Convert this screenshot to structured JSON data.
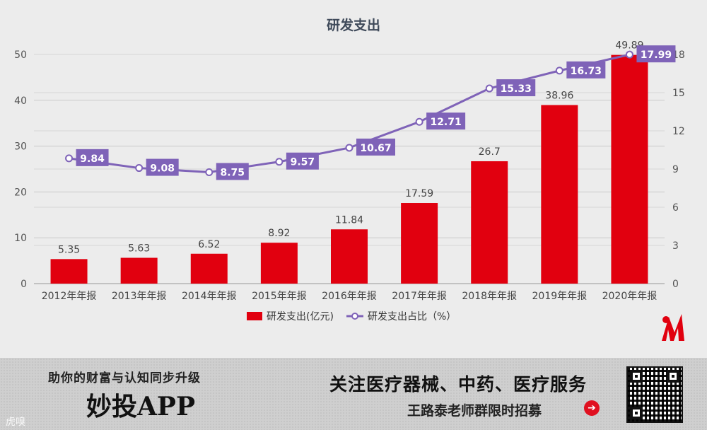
{
  "chart_data": {
    "type": "bar+line",
    "title": "研发支出",
    "categories": [
      "2012年年报",
      "2013年年报",
      "2014年年报",
      "2015年年报",
      "2016年年报",
      "2017年年报",
      "2018年年报",
      "2019年年报",
      "2020年年报"
    ],
    "series": [
      {
        "name": "研发支出(亿元)",
        "type": "bar",
        "axis": "left",
        "color": "#e1000f",
        "values": [
          5.35,
          5.63,
          6.52,
          8.92,
          11.84,
          17.59,
          26.7,
          38.96,
          49.89
        ],
        "labels": [
          "5.35",
          "5.63",
          "6.52",
          "8.92",
          "11.84",
          "17.59",
          "26.7",
          "38.96",
          "49.89"
        ]
      },
      {
        "name": "研发支出占比（%）",
        "type": "line",
        "axis": "right",
        "color": "#7f63b8",
        "values": [
          9.84,
          9.08,
          8.75,
          9.57,
          10.67,
          12.71,
          15.33,
          16.73,
          17.99
        ],
        "labels": [
          "9.84",
          "9.08",
          "8.75",
          "9.57",
          "10.67",
          "12.71",
          "15.33",
          "16.73",
          "17.99"
        ]
      }
    ],
    "y_left": {
      "min": 0,
      "max": 50,
      "ticks": [
        "0",
        "10",
        "20",
        "30",
        "40",
        "50"
      ]
    },
    "y_right": {
      "min": 0,
      "max": 18,
      "ticks": [
        "0",
        "3",
        "6",
        "9",
        "12",
        "15",
        "18"
      ]
    },
    "grid": true,
    "legend_position": "bottom-center"
  },
  "logo": {
    "name": "m-logo-icon",
    "color": "#e1000f"
  },
  "footer": {
    "slogan": "助你的财富与认知同步升级",
    "brand": "妙投APP",
    "watermark": "虎嗅",
    "headline": "关注医疗器械、中药、医疗服务",
    "recruit": "王路泰老师群限时招募",
    "arrow_icon": "➔"
  }
}
